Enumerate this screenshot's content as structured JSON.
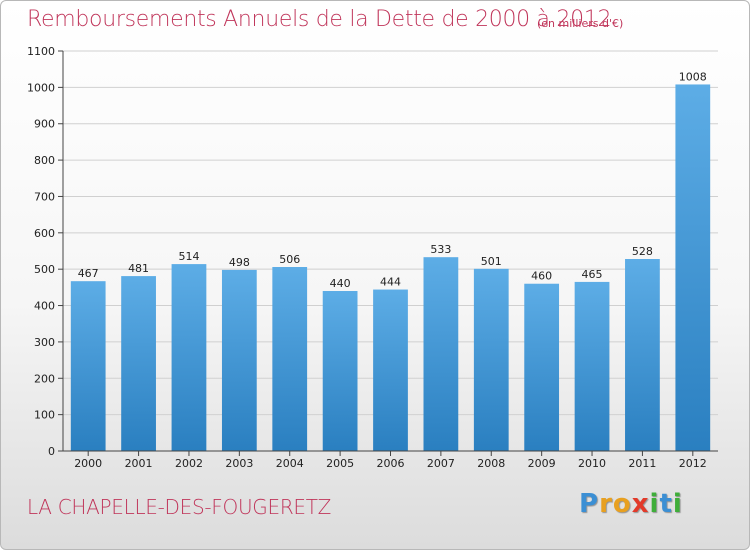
{
  "chart_data": {
    "type": "bar",
    "title": "Remboursements Annuels de la Dette de 2000 à 2012",
    "subtitle": "(en milliers d'€)",
    "categories": [
      "2000",
      "2001",
      "2002",
      "2003",
      "2004",
      "2005",
      "2006",
      "2007",
      "2008",
      "2009",
      "2010",
      "2011",
      "2012"
    ],
    "values": [
      467,
      481,
      514,
      498,
      506,
      440,
      444,
      533,
      501,
      460,
      465,
      528,
      1008
    ],
    "ylim": [
      0,
      1100
    ],
    "yticks": [
      0,
      100,
      200,
      300,
      400,
      500,
      600,
      700,
      800,
      900,
      1000,
      1100
    ],
    "grid": true,
    "legend": "none",
    "bar_color_top": "#5dade6",
    "bar_color_bottom": "#2a7fc0",
    "grid_color": "#d0d0d0"
  },
  "footer": {
    "commune": "LA CHAPELLE-DES-FOUGERETZ",
    "logo_letters": [
      {
        "char": "P",
        "color": "#3b8fd4"
      },
      {
        "char": "r",
        "color": "#e8a020"
      },
      {
        "char": "o",
        "color": "#e8a020"
      },
      {
        "char": "x",
        "color": "#e23a2a"
      },
      {
        "char": "i",
        "color": "#3fae3a"
      },
      {
        "char": "t",
        "color": "#3b8fd4"
      },
      {
        "char": "i",
        "color": "#3fae3a"
      }
    ]
  }
}
